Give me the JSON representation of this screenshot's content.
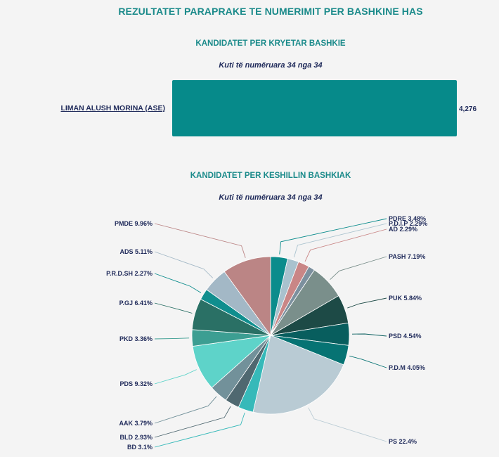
{
  "title": "REZULTATET PARAPRAKE TE NUMERIMIT PER BASHKINE HAS",
  "mayor_section": {
    "title": "KANDIDATET PER KRYETAR BASHKIE",
    "subtitle": "Kuti të numëruara 34 nga 34"
  },
  "council_section": {
    "title": "KANDIDATET PER KESHILLIN BASHKIAK",
    "subtitle": "Kuti të numëruara 34 nga 34"
  },
  "chart_data": [
    {
      "type": "bar",
      "orientation": "horizontal",
      "categories": [
        "LIMAN ALUSH MORINA (ASE)"
      ],
      "values": [
        4276
      ],
      "value_labels": [
        "4,276"
      ],
      "color": "#068a8a"
    },
    {
      "type": "pie",
      "slices": [
        {
          "label": "PDRE 3.48%",
          "value": 3.48,
          "color": "#0b8c8c"
        },
        {
          "label": "P.D.I.P 2.29%",
          "value": 2.29,
          "color": "#a9c2ce"
        },
        {
          "label": "AD 2.29%",
          "value": 2.29,
          "color": "#c98686"
        },
        {
          "label": "",
          "value": 1.31,
          "color": "#7c909e"
        },
        {
          "label": "PASH 7.19%",
          "value": 7.19,
          "color": "#7a8f8b"
        },
        {
          "label": "PUK 5.84%",
          "value": 5.84,
          "color": "#1d4a46"
        },
        {
          "label": "PSD 4.54%",
          "value": 4.54,
          "color": "#085e5e"
        },
        {
          "label": "P.D.M 4.05%",
          "value": 4.05,
          "color": "#067373"
        },
        {
          "label": "PS 22.4%",
          "value": 22.4,
          "color": "#b9cbd4"
        },
        {
          "label": "BD 3.1%",
          "value": 3.1,
          "color": "#36b9b9"
        },
        {
          "label": "BLD 2.93%",
          "value": 2.93,
          "color": "#4f6870"
        },
        {
          "label": "AAK 3.79%",
          "value": 3.79,
          "color": "#72919a"
        },
        {
          "label": "PDS 9.32%",
          "value": 9.32,
          "color": "#5ed3c9"
        },
        {
          "label": "PKD 3.36%",
          "value": 3.36,
          "color": "#3c9e92"
        },
        {
          "label": "P.GJ 6.41%",
          "value": 6.41,
          "color": "#2a7065"
        },
        {
          "label": "P.R.D.SH 2.27%",
          "value": 2.27,
          "color": "#108e8e"
        },
        {
          "label": "ADS 5.11%",
          "value": 5.11,
          "color": "#a3b8c6"
        },
        {
          "label": "PMDE 9.96%",
          "value": 9.96,
          "color": "#bb8585"
        }
      ]
    }
  ]
}
